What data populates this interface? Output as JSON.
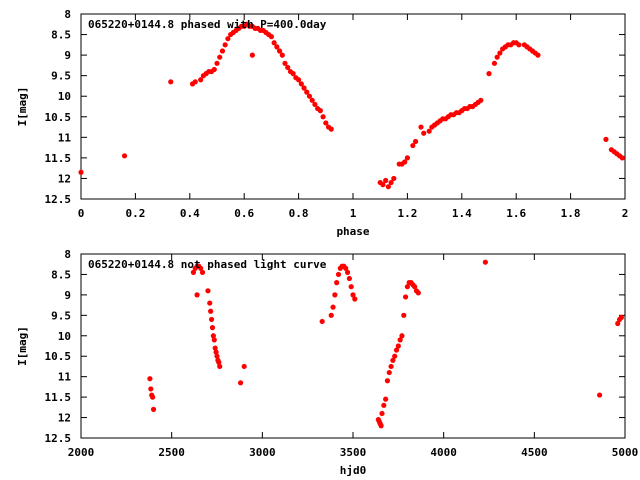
{
  "chart_data": [
    {
      "type": "scatter",
      "title": "065220+0144.8 phased with P=400.0day",
      "xlabel": "phase",
      "ylabel": "I[mag]",
      "xlim": [
        0,
        2
      ],
      "ylim": [
        8,
        12.5
      ],
      "y_inverted": true,
      "xticks": [
        "0",
        "0.2",
        "0.4",
        "0.6",
        "0.8",
        "1",
        "1.2",
        "1.4",
        "1.6",
        "1.8",
        "2"
      ],
      "yticks": [
        "8",
        "8.5",
        "9",
        "9.5",
        "10",
        "10.5",
        "11",
        "11.5",
        "12",
        "12.5"
      ],
      "grid": false,
      "marker_color": "#ff0000",
      "series": [
        {
          "x": [
            0.0,
            0.16,
            0.33,
            0.41,
            0.42,
            0.44,
            0.45,
            0.46,
            0.47,
            0.48,
            0.49,
            0.5,
            0.51,
            0.52,
            0.53,
            0.54,
            0.55,
            0.56,
            0.57,
            0.58,
            0.59,
            0.6,
            0.61,
            0.62,
            0.63,
            0.64,
            0.65,
            0.66,
            0.67,
            0.68,
            0.69,
            0.7,
            0.63,
            0.71,
            0.72,
            0.73,
            0.74,
            0.75,
            0.76,
            0.77,
            0.78,
            0.79,
            0.8,
            0.81,
            0.82,
            0.83,
            0.84,
            0.85,
            0.86,
            0.87,
            0.88,
            0.89,
            0.9,
            0.91,
            0.92,
            1.1,
            1.11,
            1.12,
            1.13,
            1.14,
            1.15,
            1.17,
            1.18,
            1.19,
            1.2,
            1.22,
            1.23,
            1.25,
            1.26,
            1.28,
            1.29,
            1.3,
            1.31,
            1.32,
            1.33,
            1.34,
            1.35,
            1.36,
            1.37,
            1.38,
            1.39,
            1.4,
            1.41,
            1.42,
            1.43,
            1.44,
            1.45,
            1.46,
            1.47,
            1.5,
            1.52,
            1.53,
            1.54,
            1.55,
            1.56,
            1.57,
            1.58,
            1.59,
            1.6,
            1.61,
            1.63,
            1.64,
            1.65,
            1.66,
            1.67,
            1.68,
            1.93,
            1.95,
            1.96,
            1.97,
            1.98,
            1.99
          ],
          "y": [
            11.85,
            11.45,
            9.65,
            9.7,
            9.65,
            9.6,
            9.5,
            9.45,
            9.4,
            9.4,
            9.35,
            9.2,
            9.05,
            8.9,
            8.75,
            8.6,
            8.5,
            8.45,
            8.4,
            8.35,
            8.3,
            8.3,
            8.25,
            8.3,
            8.3,
            8.35,
            8.35,
            8.4,
            8.4,
            8.45,
            8.5,
            8.55,
            9.0,
            8.7,
            8.8,
            8.9,
            9.0,
            9.2,
            9.3,
            9.4,
            9.45,
            9.55,
            9.6,
            9.7,
            9.8,
            9.9,
            10.0,
            10.1,
            10.2,
            10.3,
            10.35,
            10.5,
            10.65,
            10.75,
            10.8,
            12.1,
            12.15,
            12.05,
            12.2,
            12.1,
            12.0,
            11.65,
            11.65,
            11.6,
            11.5,
            11.2,
            11.1,
            10.75,
            10.9,
            10.85,
            10.75,
            10.7,
            10.65,
            10.6,
            10.55,
            10.55,
            10.5,
            10.45,
            10.45,
            10.4,
            10.4,
            10.35,
            10.3,
            10.3,
            10.25,
            10.25,
            10.2,
            10.15,
            10.1,
            9.45,
            9.2,
            9.05,
            8.95,
            8.85,
            8.8,
            8.75,
            8.75,
            8.7,
            8.7,
            8.75,
            8.75,
            8.8,
            8.85,
            8.9,
            8.95,
            9.0,
            11.05,
            11.3,
            11.35,
            11.4,
            11.45,
            11.5
          ]
        }
      ]
    },
    {
      "type": "scatter",
      "title": "065220+0144.8 not phased light curve",
      "xlabel": "hjd0",
      "ylabel": "I[mag]",
      "xlim": [
        2000,
        5000
      ],
      "ylim": [
        8,
        12.5
      ],
      "y_inverted": true,
      "xticks": [
        "2000",
        "2500",
        "3000",
        "3500",
        "4000",
        "4500",
        "5000"
      ],
      "yticks": [
        "8",
        "8.5",
        "9",
        "9.5",
        "10",
        "10.5",
        "11",
        "11.5",
        "12",
        "12.5"
      ],
      "grid": false,
      "marker_color": "#ff0000",
      "series": [
        {
          "x": [
            2380,
            2385,
            2390,
            2395,
            2400,
            2620,
            2630,
            2640,
            2650,
            2660,
            2670,
            2640,
            2700,
            2710,
            2715,
            2720,
            2725,
            2730,
            2735,
            2740,
            2745,
            2750,
            2755,
            2760,
            2765,
            2880,
            2900,
            3330,
            3380,
            3390,
            3400,
            3410,
            3420,
            3430,
            3440,
            3450,
            3460,
            3470,
            3480,
            3490,
            3500,
            3510,
            3640,
            3645,
            3650,
            3655,
            3660,
            3670,
            3680,
            3690,
            3700,
            3710,
            3720,
            3730,
            3740,
            3750,
            3760,
            3770,
            3780,
            3790,
            3800,
            3810,
            3820,
            3830,
            3840,
            3850,
            3860,
            4230,
            4860,
            4960,
            4970,
            4980
          ],
          "y": [
            11.05,
            11.3,
            11.45,
            11.5,
            11.8,
            8.45,
            8.35,
            8.3,
            8.3,
            8.35,
            8.45,
            9.0,
            8.9,
            9.2,
            9.4,
            9.6,
            9.8,
            10.0,
            10.1,
            10.3,
            10.4,
            10.5,
            10.6,
            10.65,
            10.75,
            11.15,
            10.75,
            9.65,
            9.5,
            9.3,
            9.0,
            8.7,
            8.5,
            8.35,
            8.3,
            8.3,
            8.35,
            8.45,
            8.6,
            8.8,
            9.0,
            9.1,
            12.05,
            12.1,
            12.15,
            12.2,
            11.9,
            11.7,
            11.55,
            11.1,
            10.9,
            10.75,
            10.6,
            10.5,
            10.35,
            10.25,
            10.1,
            10.0,
            9.5,
            9.05,
            8.8,
            8.7,
            8.7,
            8.75,
            8.8,
            8.9,
            8.95,
            8.2,
            11.45,
            9.7,
            9.6,
            9.55
          ]
        }
      ]
    }
  ]
}
